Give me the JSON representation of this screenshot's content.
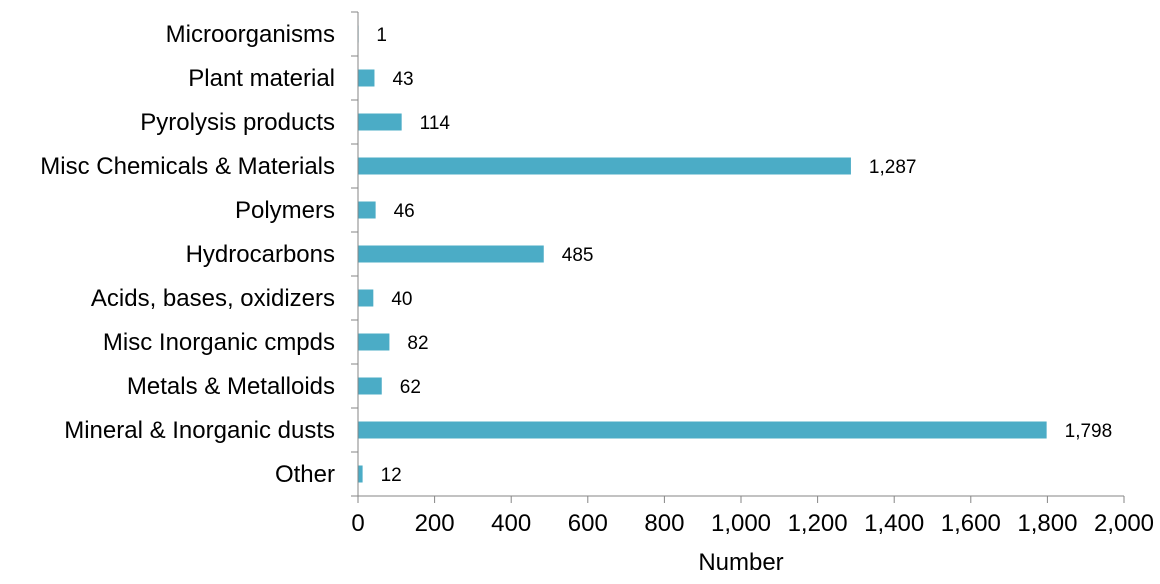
{
  "chart_data": {
    "type": "bar",
    "orientation": "horizontal",
    "categories": [
      "Microorganisms",
      "Plant material",
      "Pyrolysis products",
      "Misc Chemicals & Materials",
      "Polymers",
      "Hydrocarbons",
      "Acids, bases, oxidizers",
      "Misc Inorganic cmpds",
      "Metals & Metalloids",
      "Mineral & Inorganic dusts",
      "Other"
    ],
    "values": [
      1,
      43,
      114,
      1287,
      46,
      485,
      40,
      82,
      62,
      1798,
      12
    ],
    "value_labels": [
      "1",
      "43",
      "114",
      "1,287",
      "46",
      "485",
      "40",
      "82",
      "62",
      "1,798",
      "12"
    ],
    "title": "",
    "xlabel": "Number",
    "ylabel": "",
    "xlim": [
      0,
      2000
    ],
    "x_ticks": [
      0,
      200,
      400,
      600,
      800,
      1000,
      1200,
      1400,
      1600,
      1800,
      2000
    ],
    "x_tick_labels": [
      "0",
      "200",
      "400",
      "600",
      "800",
      "1,000",
      "1,200",
      "1,400",
      "1,600",
      "1,800",
      "2,000"
    ],
    "bar_color": "#4bacc6",
    "axis_color": "#868686",
    "grid": false,
    "legend": "none"
  }
}
